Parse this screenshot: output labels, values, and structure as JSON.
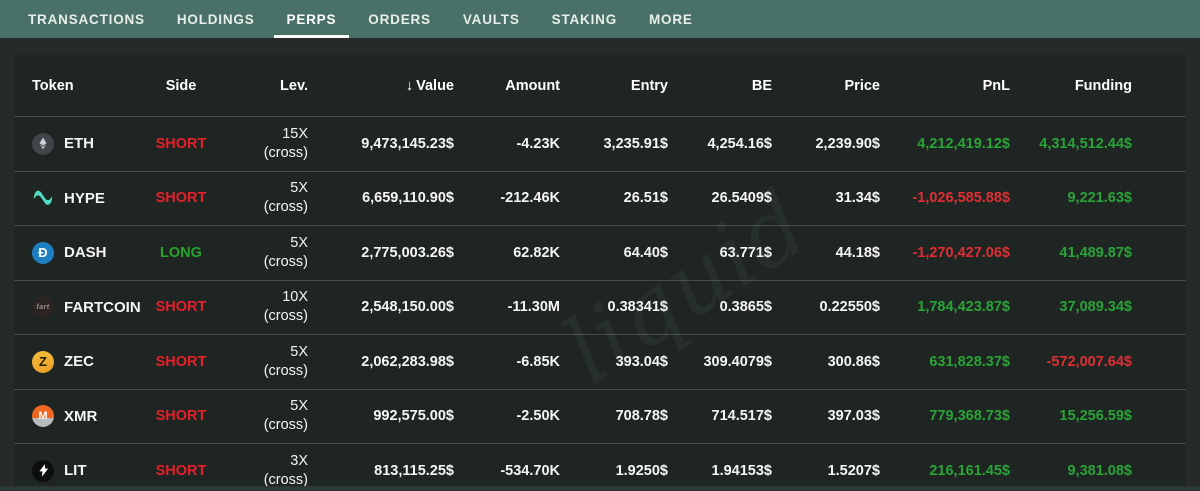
{
  "nav": {
    "tabs": [
      {
        "label": "TRANSACTIONS",
        "active": false
      },
      {
        "label": "HOLDINGS",
        "active": false
      },
      {
        "label": "PERPS",
        "active": true
      },
      {
        "label": "ORDERS",
        "active": false
      },
      {
        "label": "VAULTS",
        "active": false
      },
      {
        "label": "STAKING",
        "active": false
      },
      {
        "label": "MORE",
        "active": false
      }
    ]
  },
  "table": {
    "headers": {
      "token": "Token",
      "side": "Side",
      "lev": "Lev.",
      "sort_icon": "↓",
      "value": "Value",
      "amount": "Amount",
      "entry": "Entry",
      "be": "BE",
      "price": "Price",
      "pnl": "PnL",
      "funding": "Funding"
    },
    "rows": [
      {
        "token": "ETH",
        "icon": "eth-icon",
        "side": "SHORT",
        "side_dir": "short",
        "lev": "15X",
        "lev_mode": "(cross)",
        "value": "9,473,145.23$",
        "amount": "-4.23K",
        "entry": "3,235.91$",
        "be": "4,254.16$",
        "price": "2,239.90$",
        "pnl": "4,212,419.12$",
        "pnl_dir": "pos",
        "funding": "4,314,512.44$",
        "funding_dir": "pos"
      },
      {
        "token": "HYPE",
        "icon": "hype-icon",
        "side": "SHORT",
        "side_dir": "short",
        "lev": "5X",
        "lev_mode": "(cross)",
        "value": "6,659,110.90$",
        "amount": "-212.46K",
        "entry": "26.51$",
        "be": "26.5409$",
        "price": "31.34$",
        "pnl": "-1,026,585.88$",
        "pnl_dir": "neg",
        "funding": "9,221.63$",
        "funding_dir": "pos"
      },
      {
        "token": "DASH",
        "icon": "dash-icon",
        "side": "LONG",
        "side_dir": "long",
        "lev": "5X",
        "lev_mode": "(cross)",
        "value": "2,775,003.26$",
        "amount": "62.82K",
        "entry": "64.40$",
        "be": "63.771$",
        "price": "44.18$",
        "pnl": "-1,270,427.06$",
        "pnl_dir": "neg",
        "funding": "41,489.87$",
        "funding_dir": "pos"
      },
      {
        "token": "FARTCOIN",
        "icon": "fartcoin-icon",
        "side": "SHORT",
        "side_dir": "short",
        "lev": "10X",
        "lev_mode": "(cross)",
        "value": "2,548,150.00$",
        "amount": "-11.30M",
        "entry": "0.38341$",
        "be": "0.3865$",
        "price": "0.22550$",
        "pnl": "1,784,423.87$",
        "pnl_dir": "pos",
        "funding": "37,089.34$",
        "funding_dir": "pos"
      },
      {
        "token": "ZEC",
        "icon": "zec-icon",
        "side": "SHORT",
        "side_dir": "short",
        "lev": "5X",
        "lev_mode": "(cross)",
        "value": "2,062,283.98$",
        "amount": "-6.85K",
        "entry": "393.04$",
        "be": "309.4079$",
        "price": "300.86$",
        "pnl": "631,828.37$",
        "pnl_dir": "pos",
        "funding": "-572,007.64$",
        "funding_dir": "neg"
      },
      {
        "token": "XMR",
        "icon": "xmr-icon",
        "side": "SHORT",
        "side_dir": "short",
        "lev": "5X",
        "lev_mode": "(cross)",
        "value": "992,575.00$",
        "amount": "-2.50K",
        "entry": "708.78$",
        "be": "714.517$",
        "price": "397.03$",
        "pnl": "779,368.73$",
        "pnl_dir": "pos",
        "funding": "15,256.59$",
        "funding_dir": "pos"
      },
      {
        "token": "LIT",
        "icon": "lit-icon",
        "side": "SHORT",
        "side_dir": "short",
        "lev": "3X",
        "lev_mode": "(cross)",
        "value": "813,115.25$",
        "amount": "-534.70K",
        "entry": "1.9250$",
        "be": "1.94153$",
        "price": "1.5207$",
        "pnl": "216,161.45$",
        "pnl_dir": "pos",
        "funding": "9,381.08$",
        "funding_dir": "pos"
      }
    ]
  },
  "watermark": "liquid",
  "colors": {
    "nav_bg": "#4a7167",
    "page_bg": "#262b29",
    "table_bg": "#1f2522",
    "positive": "#2aa338",
    "negative": "#df2f35",
    "long": "#25a52b",
    "short": "#e5202a",
    "active_underline": "#ffffff"
  }
}
